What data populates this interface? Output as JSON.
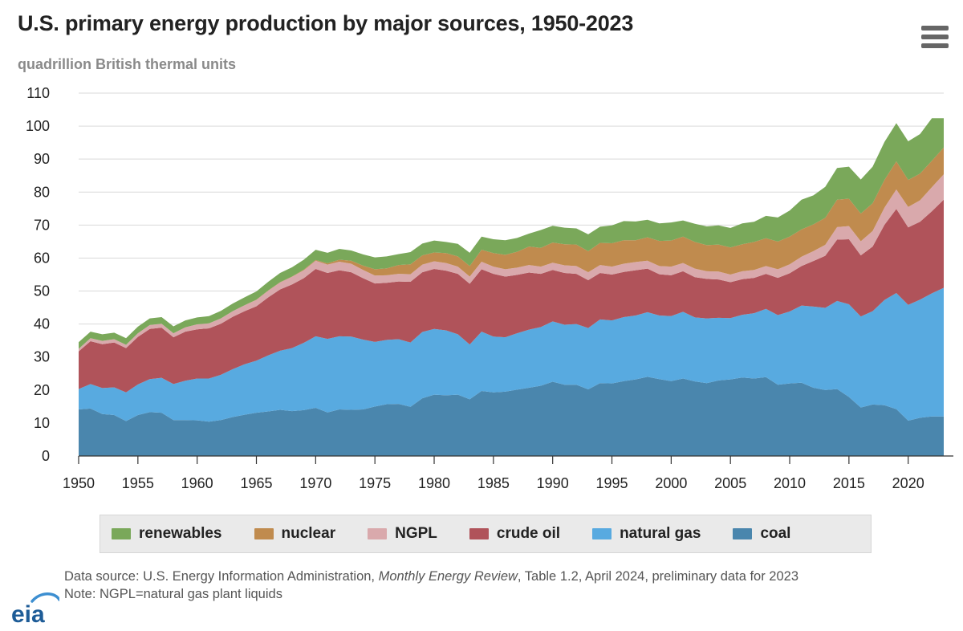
{
  "title": "U.S. primary energy production by major sources, 1950-2023",
  "subtitle": "quadrillion British thermal units",
  "menu_icon": "hamburger-menu-icon",
  "logo_text": "eia",
  "footer": {
    "source_prefix": "Data source: U.S. Energy Information Administration, ",
    "source_pub": "Monthly Energy Review",
    "source_suffix": ", Table 1.2, April 2024, preliminary data for 2023",
    "note": "Note: NGPL=natural gas plant liquids"
  },
  "chart_data": {
    "type": "area",
    "stacked": true,
    "title": "U.S. primary energy production by major sources, 1950-2023",
    "ylabel": "quadrillion British thermal units",
    "xlabel": "",
    "ylim": [
      0,
      110
    ],
    "yticks": [
      0,
      10,
      20,
      30,
      40,
      50,
      60,
      70,
      80,
      90,
      100,
      110
    ],
    "xlim": [
      1950,
      2023
    ],
    "xticks": [
      1950,
      1955,
      1960,
      1965,
      1970,
      1975,
      1980,
      1985,
      1990,
      1995,
      2000,
      2005,
      2010,
      2015,
      2020
    ],
    "x": [
      1950,
      1951,
      1952,
      1953,
      1954,
      1955,
      1956,
      1957,
      1958,
      1959,
      1960,
      1961,
      1962,
      1963,
      1964,
      1965,
      1966,
      1967,
      1968,
      1969,
      1970,
      1971,
      1972,
      1973,
      1974,
      1975,
      1976,
      1977,
      1978,
      1979,
      1980,
      1981,
      1982,
      1983,
      1984,
      1985,
      1986,
      1987,
      1988,
      1989,
      1990,
      1991,
      1992,
      1993,
      1994,
      1995,
      1996,
      1997,
      1998,
      1999,
      2000,
      2001,
      2002,
      2003,
      2004,
      2005,
      2006,
      2007,
      2008,
      2009,
      2010,
      2011,
      2012,
      2013,
      2014,
      2015,
      2016,
      2017,
      2018,
      2019,
      2020,
      2021,
      2022,
      2023
    ],
    "series": [
      {
        "name": "coal",
        "color": "#4a86ad",
        "values": [
          14.1,
          14.4,
          12.7,
          12.4,
          10.6,
          12.4,
          13.3,
          13.1,
          10.9,
          10.9,
          10.8,
          10.4,
          10.9,
          11.8,
          12.5,
          13.1,
          13.5,
          14.0,
          13.6,
          13.9,
          14.6,
          13.2,
          14.1,
          14.0,
          14.1,
          15.0,
          15.7,
          15.8,
          14.9,
          17.5,
          18.6,
          18.4,
          18.6,
          17.2,
          19.7,
          19.3,
          19.5,
          20.1,
          20.7,
          21.3,
          22.5,
          21.6,
          21.6,
          20.2,
          22.1,
          22.0,
          22.7,
          23.2,
          24.0,
          23.3,
          22.7,
          23.5,
          22.6,
          22.1,
          22.9,
          23.2,
          23.8,
          23.5,
          23.9,
          21.6,
          22.0,
          22.2,
          20.7,
          20.0,
          20.3,
          17.9,
          14.7,
          15.6,
          15.4,
          14.2,
          10.7,
          11.6,
          12.0,
          12.0
        ]
      },
      {
        "name": "natural gas",
        "color": "#58aae0",
        "values": [
          6.2,
          7.4,
          7.9,
          8.4,
          8.7,
          9.3,
          10.0,
          10.6,
          10.9,
          11.9,
          12.7,
          13.1,
          13.7,
          14.5,
          15.3,
          15.8,
          17.0,
          17.9,
          19.1,
          20.4,
          21.7,
          22.3,
          22.2,
          22.2,
          21.2,
          19.6,
          19.5,
          19.6,
          19.5,
          20.1,
          19.9,
          19.7,
          18.3,
          16.6,
          18.0,
          16.9,
          16.5,
          17.1,
          17.6,
          17.8,
          18.3,
          18.2,
          18.4,
          18.6,
          19.3,
          19.1,
          19.4,
          19.4,
          19.6,
          19.3,
          19.7,
          20.2,
          19.4,
          19.6,
          19.0,
          18.6,
          19.0,
          19.8,
          20.7,
          21.1,
          21.8,
          23.4,
          24.6,
          24.9,
          26.7,
          28.1,
          27.6,
          28.3,
          31.9,
          35.2,
          35.1,
          35.8,
          37.3,
          39.0
        ]
      },
      {
        "name": "crude oil",
        "color": "#b0535a",
        "values": [
          11.4,
          13.0,
          13.3,
          13.6,
          13.4,
          14.4,
          15.2,
          15.2,
          14.2,
          14.9,
          14.9,
          15.2,
          15.5,
          15.9,
          16.1,
          16.5,
          17.6,
          18.6,
          19.3,
          19.6,
          20.4,
          20.0,
          20.0,
          19.5,
          18.6,
          17.7,
          17.3,
          17.5,
          18.4,
          18.1,
          18.2,
          18.1,
          18.3,
          18.4,
          18.9,
          19.0,
          18.4,
          17.7,
          17.3,
          16.1,
          15.6,
          15.7,
          15.2,
          14.5,
          14.1,
          13.9,
          13.7,
          13.7,
          13.2,
          12.5,
          12.4,
          12.3,
          12.2,
          12.0,
          11.6,
          10.9,
          10.8,
          10.7,
          10.6,
          11.3,
          11.6,
          12.0,
          13.8,
          15.8,
          18.6,
          19.7,
          18.5,
          19.6,
          22.8,
          25.5,
          23.5,
          23.6,
          24.9,
          26.7
        ]
      },
      {
        "name": "NGPL",
        "color": "#d9a9ac",
        "values": [
          0.8,
          0.9,
          1.0,
          1.0,
          1.0,
          1.1,
          1.2,
          1.2,
          1.2,
          1.3,
          1.5,
          1.5,
          1.6,
          1.7,
          1.8,
          1.9,
          2.0,
          2.1,
          2.3,
          2.4,
          2.5,
          2.5,
          2.6,
          2.6,
          2.5,
          2.4,
          2.3,
          2.3,
          2.3,
          2.3,
          2.3,
          2.3,
          2.2,
          2.2,
          2.3,
          2.2,
          2.2,
          2.2,
          2.3,
          2.2,
          2.2,
          2.3,
          2.4,
          2.4,
          2.4,
          2.4,
          2.5,
          2.5,
          2.4,
          2.5,
          2.6,
          2.5,
          2.6,
          2.3,
          2.4,
          2.3,
          2.4,
          2.4,
          2.4,
          2.6,
          2.7,
          2.8,
          3.0,
          3.3,
          3.8,
          4.0,
          4.3,
          4.7,
          5.2,
          5.9,
          6.2,
          6.5,
          7.3,
          7.7
        ]
      },
      {
        "name": "nuclear",
        "color": "#c08b4e",
        "values": [
          0,
          0,
          0,
          0,
          0,
          0,
          0,
          0,
          0,
          0,
          0,
          0,
          0,
          0,
          0,
          0.1,
          0.1,
          0.1,
          0.1,
          0.2,
          0.2,
          0.4,
          0.6,
          0.9,
          1.3,
          1.9,
          2.1,
          2.7,
          3.0,
          2.8,
          2.7,
          3.0,
          3.1,
          3.2,
          3.6,
          4.1,
          4.4,
          4.8,
          5.6,
          5.7,
          6.1,
          6.4,
          6.5,
          6.4,
          6.7,
          7.1,
          7.1,
          6.6,
          7.1,
          7.6,
          7.9,
          8.0,
          8.1,
          7.9,
          8.2,
          8.2,
          8.2,
          8.5,
          8.4,
          8.4,
          8.4,
          8.3,
          8.1,
          8.2,
          8.3,
          8.3,
          8.4,
          8.4,
          8.4,
          8.5,
          8.2,
          8.1,
          8.0,
          8.1
        ]
      },
      {
        "name": "renewables",
        "color": "#7aa85a",
        "values": [
          2.0,
          2.0,
          2.0,
          2.0,
          2.0,
          2.0,
          2.0,
          2.0,
          2.1,
          2.1,
          2.1,
          2.2,
          2.3,
          2.3,
          2.4,
          2.5,
          2.6,
          2.8,
          2.8,
          3.0,
          3.1,
          3.2,
          3.3,
          3.1,
          3.4,
          3.6,
          3.6,
          3.3,
          3.7,
          3.6,
          3.6,
          3.4,
          3.8,
          4.0,
          4.0,
          4.2,
          4.4,
          4.2,
          3.9,
          5.4,
          5.1,
          5.0,
          4.9,
          5.1,
          4.9,
          5.4,
          5.8,
          5.7,
          5.3,
          5.3,
          5.5,
          4.9,
          5.5,
          5.7,
          5.8,
          5.9,
          6.3,
          6.1,
          6.8,
          7.3,
          7.9,
          9.0,
          8.8,
          9.4,
          9.6,
          9.7,
          10.3,
          11.1,
          11.5,
          11.6,
          11.7,
          12.0,
          12.9,
          8.9
        ]
      }
    ],
    "legend_order": [
      "renewables",
      "nuclear",
      "NGPL",
      "crude oil",
      "natural gas",
      "coal"
    ],
    "legend_position": "bottom",
    "grid": true
  }
}
